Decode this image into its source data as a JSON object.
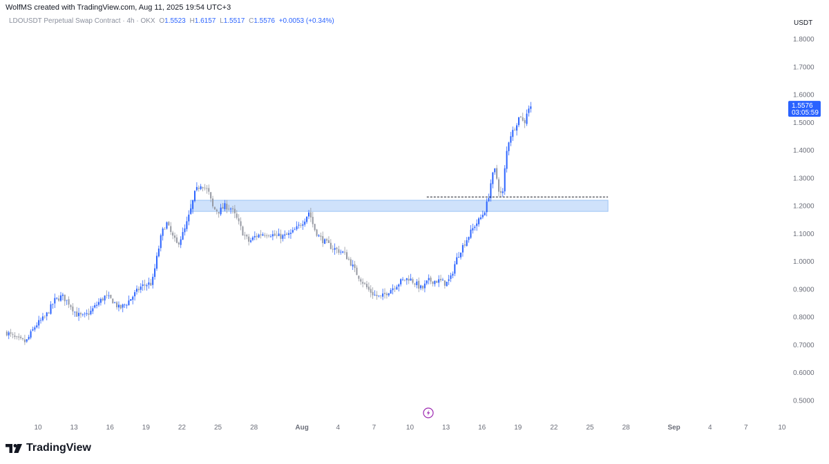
{
  "header": {
    "credit": "WolfMS created with TradingView.com, Aug 11, 2025 19:54 UTC+3",
    "symbol_desc": "LDOUSDT Perpetual Swap Contract",
    "interval": "4h",
    "exchange": "OKX",
    "o_label": "O",
    "o_value": "1.5523",
    "h_label": "H",
    "h_value": "1.6157",
    "l_label": "L",
    "l_value": "1.5517",
    "c_label": "C",
    "c_value": "1.5576",
    "change": "+0.0053 (+0.34%)"
  },
  "footer": {
    "brand": "TradingView"
  },
  "colors": {
    "up": "#2962ff",
    "down": "#9598a1",
    "zone_fill": "#cfe2fb",
    "zone_border": "#9cc4f5",
    "price_tag": "#2962ff",
    "event_icon": "#9c27b0"
  },
  "chart_data": {
    "type": "candlestick",
    "interval": "4h",
    "y_axis": {
      "currency": "USDT",
      "ticks": [
        "1.8000",
        "1.7000",
        "1.6000",
        "1.5000",
        "1.4000",
        "1.3000",
        "1.2000",
        "1.1000",
        "1.0000",
        "0.9000",
        "0.8000",
        "0.7000",
        "0.6000",
        "0.5000"
      ],
      "tick_values": [
        1.8,
        1.7,
        1.6,
        1.5,
        1.4,
        1.3,
        1.2,
        1.1,
        1.0,
        0.9,
        0.8,
        0.7,
        0.6,
        0.5
      ],
      "ylim": [
        0.45,
        1.85
      ]
    },
    "x_axis": {
      "ticks": [
        "10",
        "13",
        "16",
        "19",
        "22",
        "25",
        "28",
        "Aug",
        "4",
        "7",
        "10",
        "13",
        "16",
        "19",
        "22",
        "25",
        "28",
        "Sep",
        "4",
        "7",
        "10"
      ],
      "day_offsets": [
        0,
        3,
        6,
        9,
        12,
        15,
        18,
        22,
        25,
        28,
        31,
        34,
        37,
        40,
        43,
        46,
        49,
        53,
        56,
        59,
        62
      ],
      "bold": [
        "Aug",
        "Sep"
      ],
      "xlim_days": [
        -2.65,
        64.25
      ]
    },
    "current_price": {
      "value": 1.5576,
      "label": "1.5576",
      "countdown": "03:05:59"
    },
    "zone": {
      "low": 1.18,
      "high": 1.22,
      "start_day": 12.7,
      "end_day": 47.5
    },
    "dashed_level": {
      "value": 1.232,
      "start_day": 32.4,
      "end_day": 47.5
    },
    "anchors": [
      [
        -2.6,
        0.745
      ],
      [
        -1.8,
        0.72
      ],
      [
        -1.0,
        0.71
      ],
      [
        -0.2,
        0.77
      ],
      [
        0.6,
        0.8
      ],
      [
        1.4,
        0.86
      ],
      [
        2.0,
        0.875
      ],
      [
        2.6,
        0.85
      ],
      [
        3.2,
        0.81
      ],
      [
        3.8,
        0.8
      ],
      [
        4.4,
        0.82
      ],
      [
        5.0,
        0.85
      ],
      [
        5.6,
        0.875
      ],
      [
        6.2,
        0.86
      ],
      [
        6.8,
        0.83
      ],
      [
        7.4,
        0.85
      ],
      [
        8.0,
        0.88
      ],
      [
        8.6,
        0.91
      ],
      [
        9.2,
        0.92
      ],
      [
        9.5,
        0.92
      ],
      [
        9.8,
        0.99
      ],
      [
        10.3,
        1.1
      ],
      [
        10.7,
        1.14
      ],
      [
        11.2,
        1.09
      ],
      [
        11.6,
        1.06
      ],
      [
        12.2,
        1.11
      ],
      [
        12.7,
        1.18
      ],
      [
        13.1,
        1.25
      ],
      [
        13.6,
        1.28
      ],
      [
        14.2,
        1.25
      ],
      [
        14.6,
        1.19
      ],
      [
        15.1,
        1.18
      ],
      [
        15.6,
        1.2
      ],
      [
        16.1,
        1.19
      ],
      [
        16.6,
        1.15
      ],
      [
        17.1,
        1.1
      ],
      [
        17.6,
        1.07
      ],
      [
        18.1,
        1.09
      ],
      [
        18.7,
        1.1
      ],
      [
        19.3,
        1.1
      ],
      [
        19.9,
        1.09
      ],
      [
        20.5,
        1.09
      ],
      [
        21.1,
        1.1
      ],
      [
        21.6,
        1.12
      ],
      [
        22.2,
        1.15
      ],
      [
        22.6,
        1.18
      ],
      [
        23.0,
        1.12
      ],
      [
        23.4,
        1.09
      ],
      [
        23.9,
        1.07
      ],
      [
        24.5,
        1.05
      ],
      [
        25.0,
        1.04
      ],
      [
        25.5,
        1.03
      ],
      [
        26.0,
        1.0
      ],
      [
        26.5,
        0.96
      ],
      [
        27.0,
        0.93
      ],
      [
        27.5,
        0.9
      ],
      [
        28.0,
        0.88
      ],
      [
        28.6,
        0.87
      ],
      [
        29.1,
        0.89
      ],
      [
        29.7,
        0.91
      ],
      [
        30.3,
        0.93
      ],
      [
        30.9,
        0.94
      ],
      [
        31.5,
        0.92
      ],
      [
        32.0,
        0.9
      ],
      [
        32.5,
        0.93
      ],
      [
        33.0,
        0.93
      ],
      [
        33.5,
        0.93
      ],
      [
        34.0,
        0.92
      ],
      [
        34.4,
        0.94
      ],
      [
        34.8,
        1.0
      ],
      [
        35.2,
        1.04
      ],
      [
        35.6,
        1.07
      ],
      [
        36.0,
        1.1
      ],
      [
        36.4,
        1.13
      ],
      [
        36.8,
        1.15
      ],
      [
        37.2,
        1.18
      ],
      [
        37.5,
        1.22
      ],
      [
        37.8,
        1.3
      ],
      [
        38.1,
        1.33
      ],
      [
        38.4,
        1.26
      ],
      [
        38.7,
        1.23
      ],
      [
        39.0,
        1.38
      ],
      [
        39.3,
        1.45
      ],
      [
        39.6,
        1.47
      ],
      [
        39.9,
        1.5
      ],
      [
        40.2,
        1.53
      ],
      [
        40.5,
        1.49
      ],
      [
        40.8,
        1.55
      ],
      [
        41.1,
        1.5576
      ]
    ]
  }
}
